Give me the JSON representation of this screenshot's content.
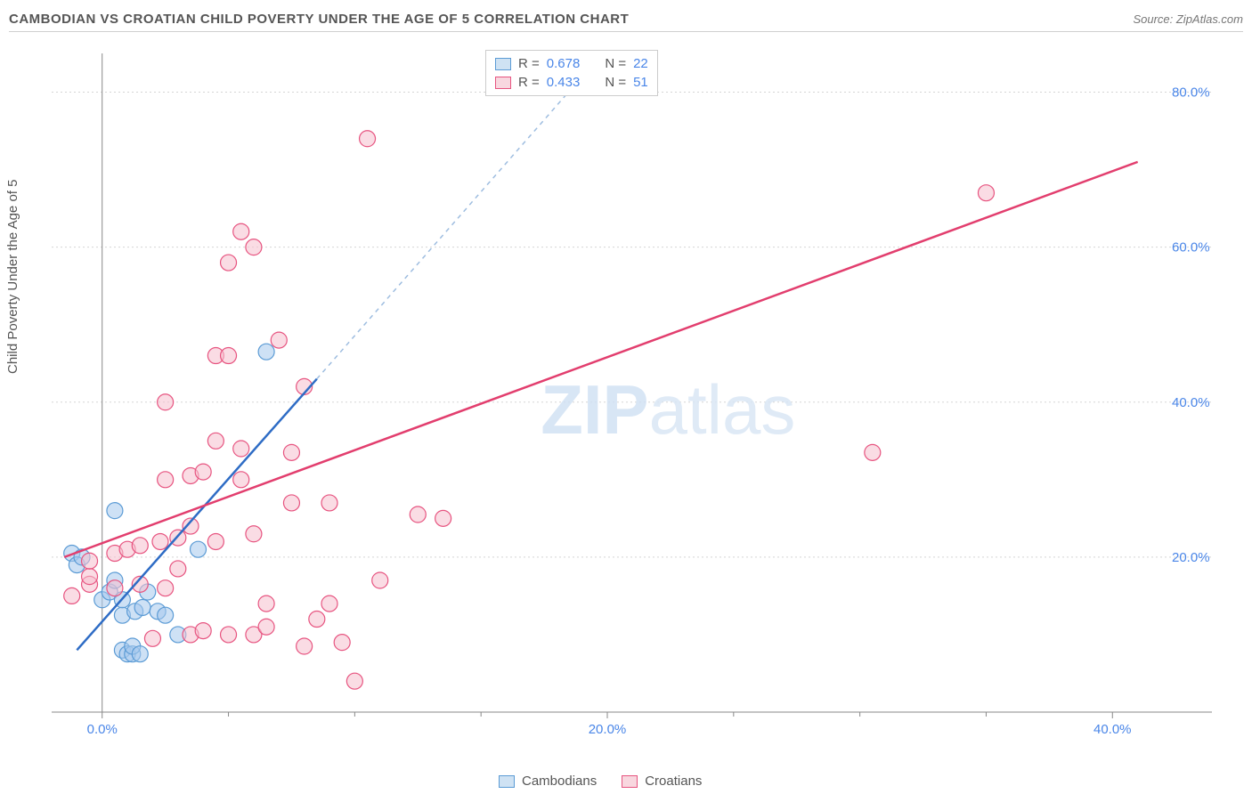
{
  "header": {
    "title": "CAMBODIAN VS CROATIAN CHILD POVERTY UNDER THE AGE OF 5 CORRELATION CHART",
    "source_prefix": "Source: ",
    "source": "ZipAtlas.com"
  },
  "y_axis_label": "Child Poverty Under the Age of 5",
  "watermark": {
    "part1": "ZIP",
    "part2": "atlas"
  },
  "colors": {
    "blue_fill": "#a6c8ed",
    "blue_stroke": "#5b9bd5",
    "blue_line": "#2e6cc5",
    "blue_dash": "#9ebde0",
    "pink_fill": "#f6c0cd",
    "pink_stroke": "#e75480",
    "pink_line": "#e23e6e",
    "tick_label": "#4a86e8",
    "grid": "#d5d5d5",
    "background": "#ffffff"
  },
  "chart": {
    "type": "scatter",
    "xlim": [
      -2,
      42
    ],
    "ylim": [
      0,
      85
    ],
    "x_ticks": [
      0,
      20,
      40
    ],
    "x_tick_labels": [
      "0.0%",
      "20.0%",
      "40.0%"
    ],
    "y_ticks": [
      20,
      40,
      60,
      80
    ],
    "y_tick_labels": [
      "20.0%",
      "40.0%",
      "60.0%",
      "80.0%"
    ],
    "y_minor_ticks": [
      5,
      10,
      15,
      25,
      30,
      35,
      45,
      50,
      55,
      65,
      70,
      75
    ],
    "marker_radius": 9,
    "line_width": 2.5,
    "series": [
      {
        "name": "Cambodians",
        "color_key": "blue",
        "stats": {
          "R_label": "R =",
          "R": "0.678",
          "N_label": "N =",
          "N": "22"
        },
        "trend": {
          "x1": -1.0,
          "y1": 8.0,
          "x2": 8.5,
          "y2": 43.0,
          "dash_x2": 19.0,
          "dash_y2": 82.0
        },
        "points": [
          [
            -1.2,
            20.5
          ],
          [
            -1.0,
            19.0
          ],
          [
            -0.8,
            20.0
          ],
          [
            0.0,
            14.5
          ],
          [
            0.3,
            15.5
          ],
          [
            0.5,
            17.0
          ],
          [
            0.5,
            26.0
          ],
          [
            0.8,
            8.0
          ],
          [
            0.8,
            12.5
          ],
          [
            0.8,
            14.5
          ],
          [
            1.0,
            7.5
          ],
          [
            1.2,
            7.5
          ],
          [
            1.2,
            8.5
          ],
          [
            1.5,
            7.5
          ],
          [
            1.3,
            13.0
          ],
          [
            1.6,
            13.5
          ],
          [
            1.8,
            15.5
          ],
          [
            2.2,
            13.0
          ],
          [
            2.5,
            12.5
          ],
          [
            3.0,
            10.0
          ],
          [
            3.8,
            21.0
          ],
          [
            6.5,
            46.5
          ]
        ]
      },
      {
        "name": "Croatians",
        "color_key": "pink",
        "stats": {
          "R_label": "R =",
          "R": "0.433",
          "N_label": "N =",
          "N": "51"
        },
        "trend": {
          "x1": -1.5,
          "y1": 20.0,
          "x2": 41.0,
          "y2": 71.0
        },
        "points": [
          [
            -1.2,
            15.0
          ],
          [
            -0.5,
            16.5
          ],
          [
            -0.5,
            17.5
          ],
          [
            -0.5,
            19.5
          ],
          [
            0.5,
            16.0
          ],
          [
            0.5,
            20.5
          ],
          [
            1.0,
            21.0
          ],
          [
            1.5,
            21.5
          ],
          [
            1.5,
            16.5
          ],
          [
            2.0,
            9.5
          ],
          [
            2.3,
            22.0
          ],
          [
            2.5,
            16.0
          ],
          [
            2.5,
            30.0
          ],
          [
            2.5,
            40.0
          ],
          [
            3.0,
            18.5
          ],
          [
            3.0,
            22.5
          ],
          [
            3.5,
            10.0
          ],
          [
            3.5,
            24.0
          ],
          [
            3.5,
            30.5
          ],
          [
            4.0,
            10.5
          ],
          [
            4.0,
            31.0
          ],
          [
            4.5,
            22.0
          ],
          [
            4.5,
            35.0
          ],
          [
            4.5,
            46.0
          ],
          [
            5.0,
            10.0
          ],
          [
            5.0,
            46.0
          ],
          [
            5.0,
            58.0
          ],
          [
            5.5,
            30.0
          ],
          [
            5.5,
            34.0
          ],
          [
            5.5,
            62.0
          ],
          [
            6.0,
            10.0
          ],
          [
            6.0,
            23.0
          ],
          [
            6.0,
            60.0
          ],
          [
            6.5,
            11.0
          ],
          [
            6.5,
            14.0
          ],
          [
            7.0,
            48.0
          ],
          [
            7.5,
            27.0
          ],
          [
            7.5,
            33.5
          ],
          [
            8.0,
            8.5
          ],
          [
            8.0,
            42.0
          ],
          [
            8.5,
            12.0
          ],
          [
            9.0,
            14.0
          ],
          [
            9.0,
            27.0
          ],
          [
            9.5,
            9.0
          ],
          [
            10.0,
            4.0
          ],
          [
            10.5,
            74.0
          ],
          [
            11.0,
            17.0
          ],
          [
            12.5,
            25.5
          ],
          [
            13.5,
            25.0
          ],
          [
            30.5,
            33.5
          ],
          [
            35.0,
            67.0
          ]
        ]
      }
    ]
  },
  "bottom_legend": {
    "item1": "Cambodians",
    "item2": "Croatians"
  }
}
